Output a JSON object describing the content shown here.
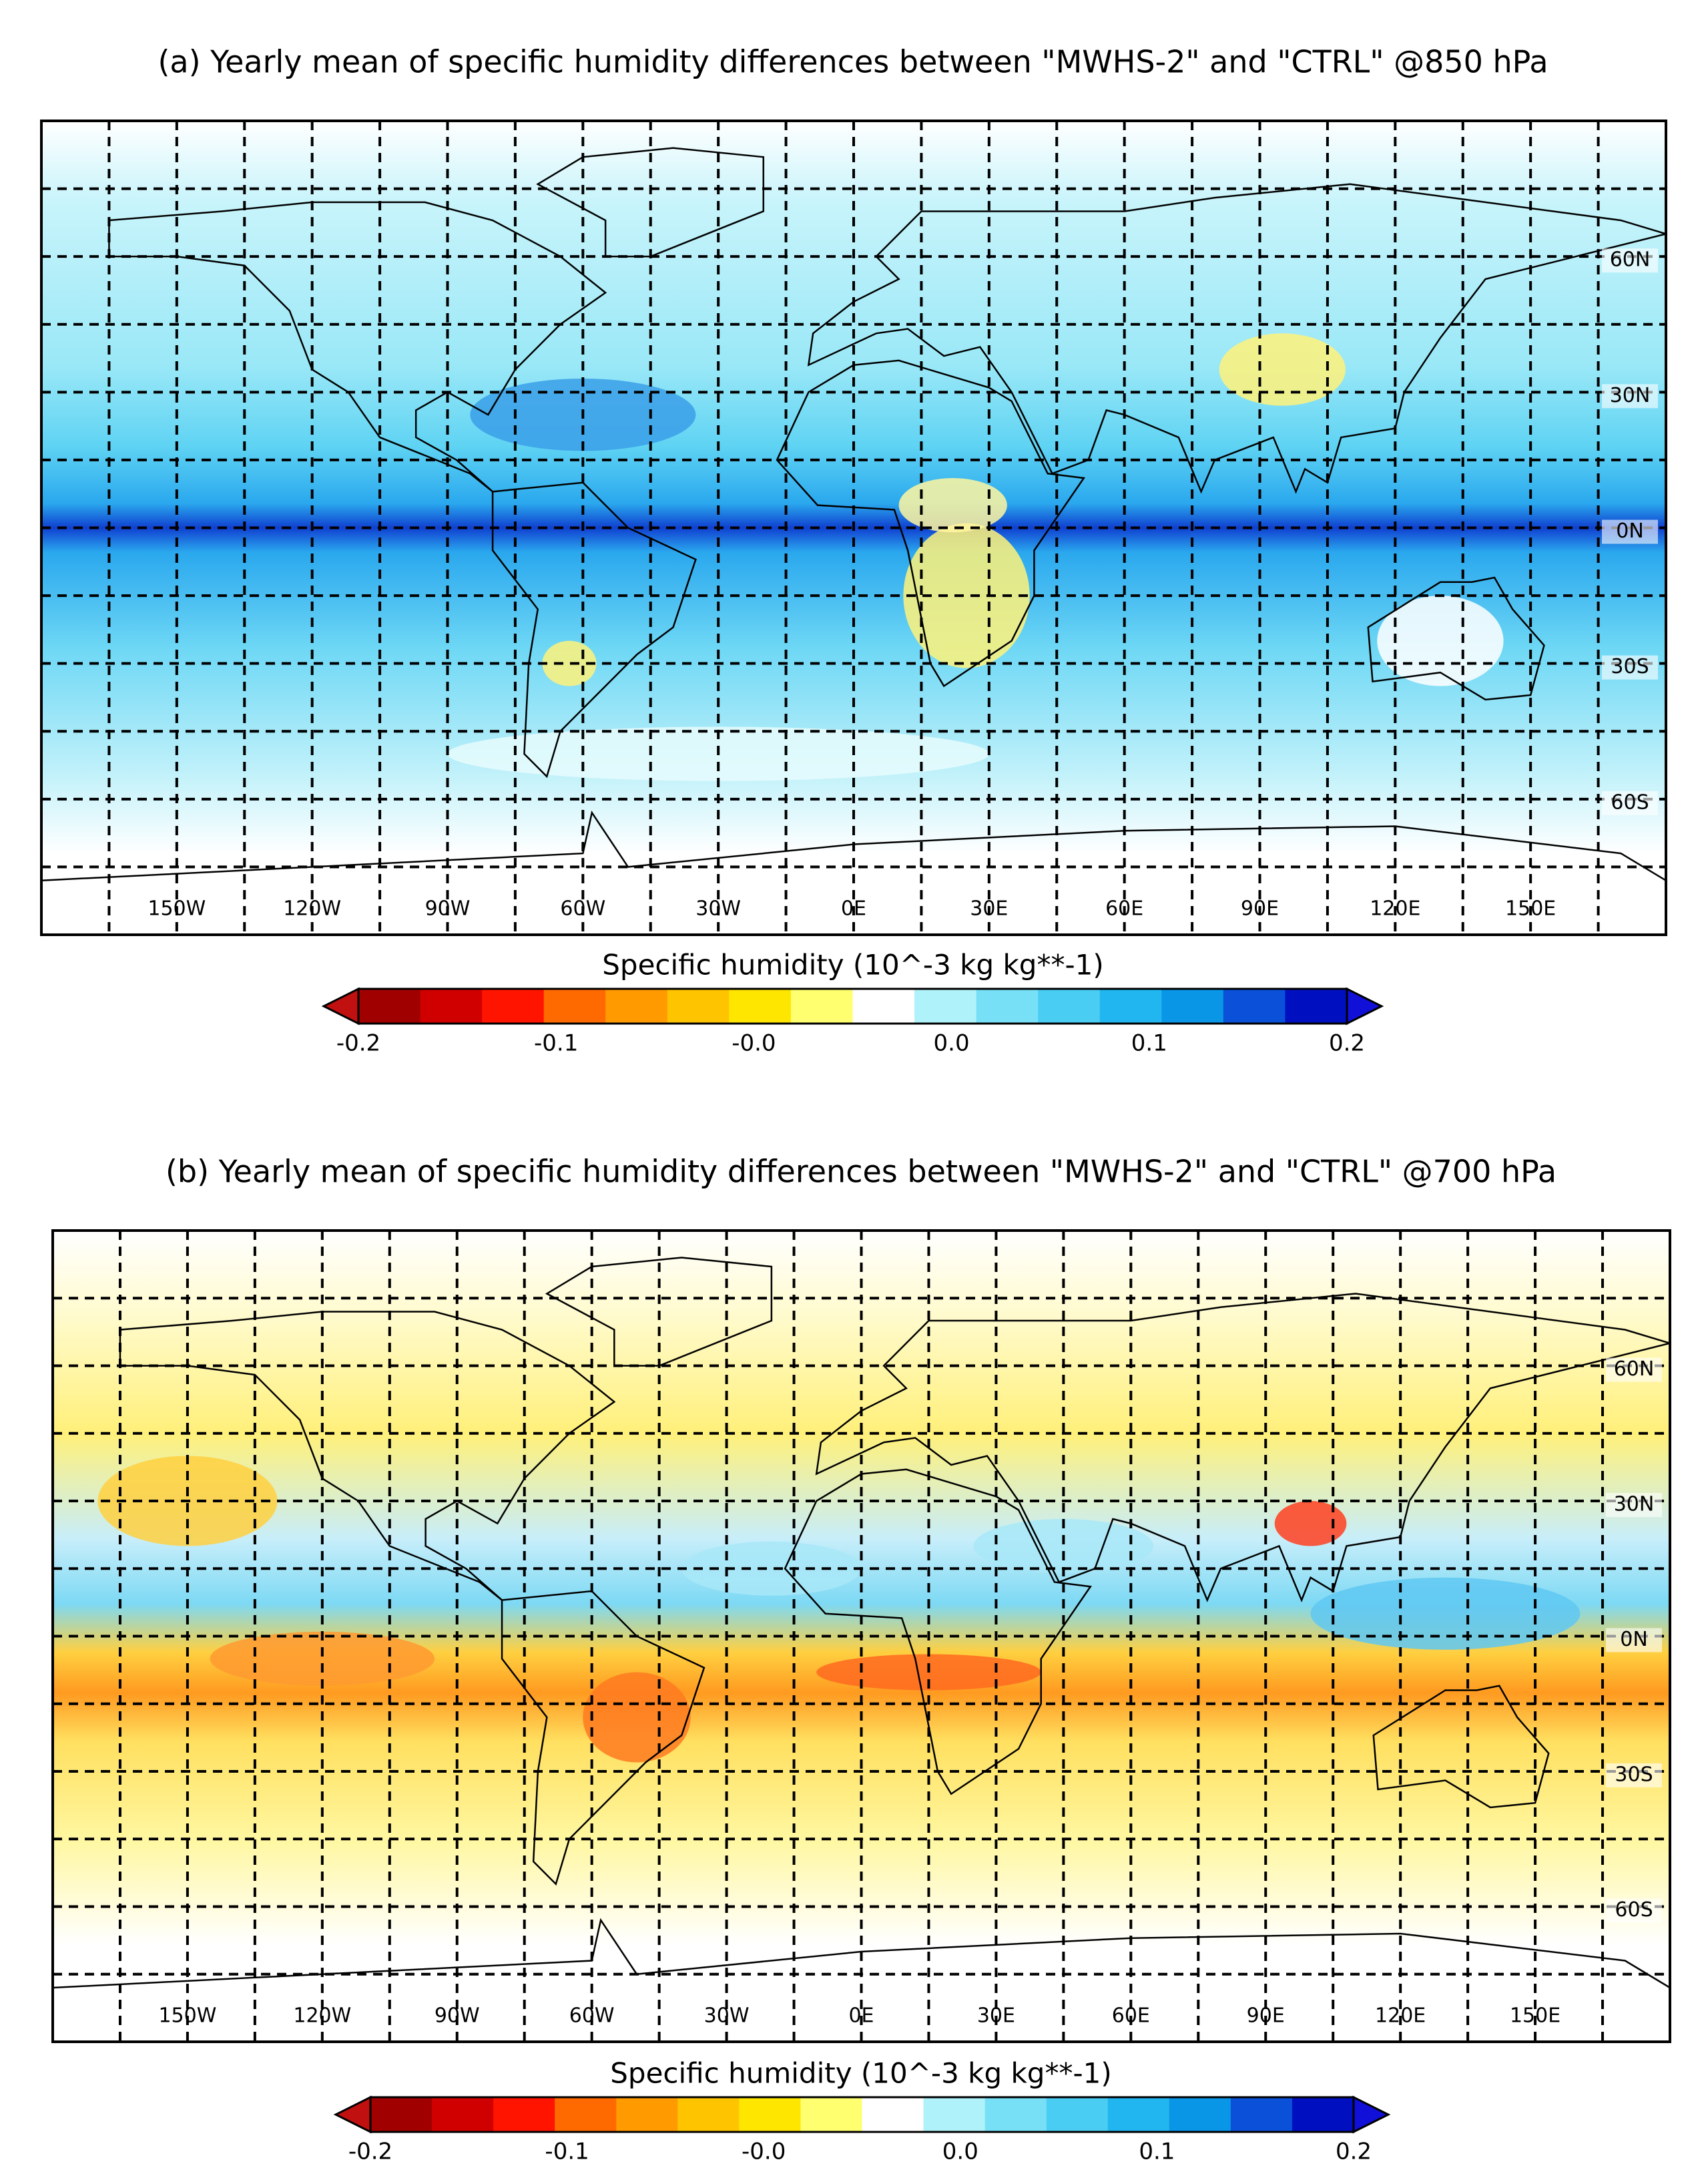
{
  "panels": [
    {
      "title": "(a) Yearly mean of specific humidity differences between \"MWHS-2\" and \"CTRL\" @850 hPa",
      "lon_labels": [
        "150W",
        "120W",
        "90W",
        "60W",
        "30W",
        "0E",
        "30E",
        "60E",
        "90E",
        "120E",
        "150E"
      ],
      "lat_labels": [
        "60N",
        "30N",
        "0N",
        "30S",
        "60S"
      ],
      "colorbar": {
        "label": "Specific humidity (10^-3 kg kg**-1)",
        "ticks": [
          "-0.2",
          "-0.1",
          "-0.0",
          "0.0",
          "0.1",
          "0.2"
        ],
        "under_color": "#c01010",
        "over_color": "#1010d8",
        "colors": [
          "#a00000",
          "#d00000",
          "#ff1400",
          "#ff6a00",
          "#ff9a00",
          "#ffc400",
          "#ffe600",
          "#ffff70",
          "#ffffff",
          "#b0f2fa",
          "#78e0f6",
          "#4acdf3",
          "#22b6f0",
          "#0a96e6",
          "#0a50d8",
          "#0010c0"
        ]
      }
    },
    {
      "title": "(b) Yearly mean of specific humidity differences between \"MWHS-2\" and \"CTRL\" @700 hPa",
      "lon_labels": [
        "150W",
        "120W",
        "90W",
        "60W",
        "30W",
        "0E",
        "30E",
        "60E",
        "90E",
        "120E",
        "150E"
      ],
      "lat_labels": [
        "60N",
        "30N",
        "0N",
        "30S",
        "60S"
      ],
      "colorbar": {
        "label": "Specific humidity (10^-3 kg kg**-1)",
        "ticks": [
          "-0.2",
          "-0.1",
          "-0.0",
          "0.0",
          "0.1",
          "0.2"
        ],
        "under_color": "#c01010",
        "over_color": "#1010d8",
        "colors": [
          "#a00000",
          "#d00000",
          "#ff1400",
          "#ff6a00",
          "#ff9a00",
          "#ffc400",
          "#ffe600",
          "#ffff70",
          "#ffffff",
          "#b0f2fa",
          "#78e0f6",
          "#4acdf3",
          "#22b6f0",
          "#0a96e6",
          "#0a50d8",
          "#0010c0"
        ]
      }
    }
  ]
}
